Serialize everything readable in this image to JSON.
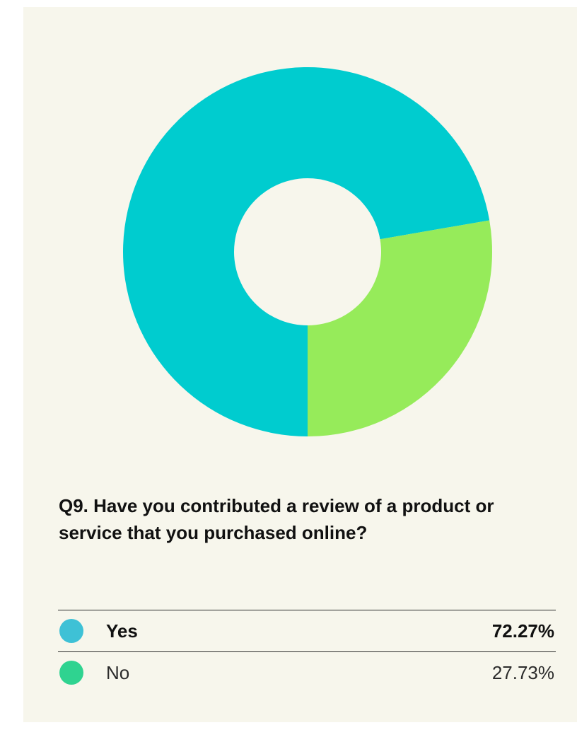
{
  "chart_data": {
    "type": "pie",
    "style": "donut",
    "title": "Q9. Have you contributed a review of a product or service that you purchased online?",
    "categories": [
      "Yes",
      "No"
    ],
    "values": [
      72.27,
      27.73
    ],
    "value_labels": [
      "72.27%",
      "27.73%"
    ],
    "unit": "%",
    "slice_colors": [
      "#00cccf",
      "#96eb5a"
    ],
    "legend_colors": [
      "#3ec1d6",
      "#2fd390"
    ],
    "legend_placement": "bottom"
  }
}
